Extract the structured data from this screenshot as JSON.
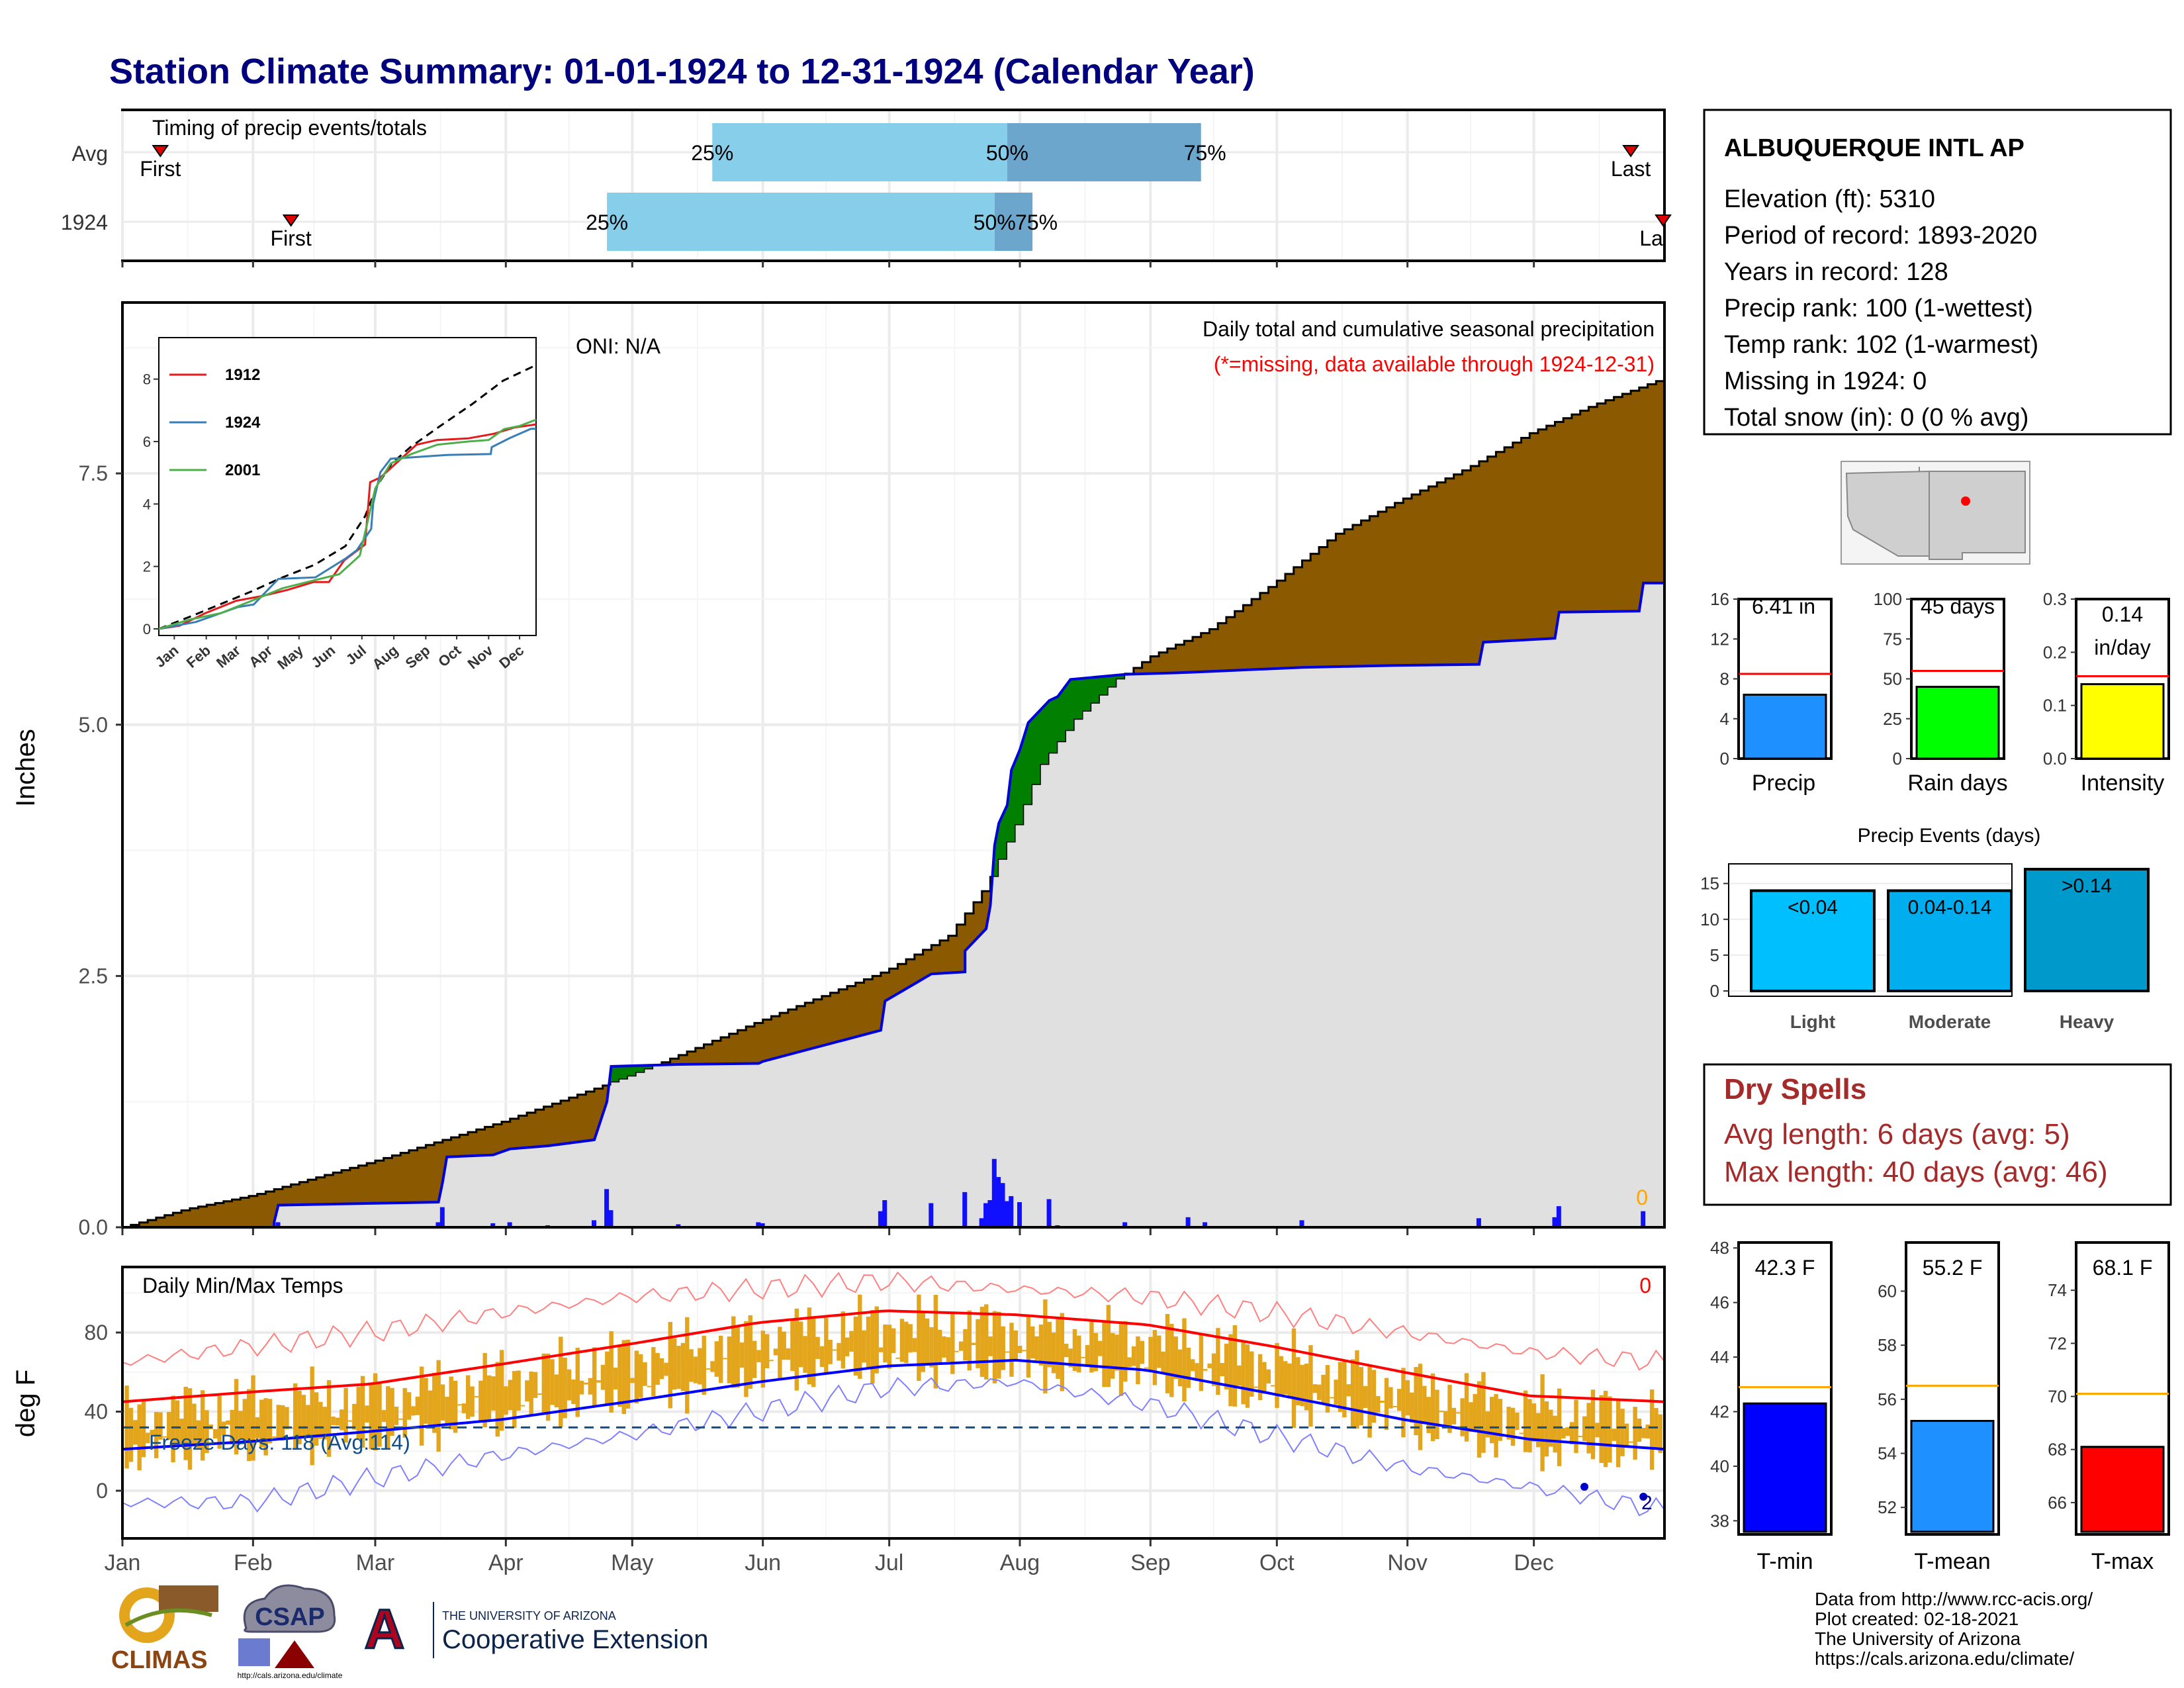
{
  "title": "Station Climate Summary: 01-01-1924 to 12-31-1924 (Calendar Year)",
  "months": [
    "Jan",
    "Feb",
    "Mar",
    "Apr",
    "May",
    "Jun",
    "Jul",
    "Aug",
    "Sep",
    "Oct",
    "Nov",
    "Dec"
  ],
  "colors": {
    "title": "#00007F",
    "avg_cum": "#8B5A00",
    "above_avg": "#007F00",
    "year_cum": "#0000DD",
    "year_fill": "#E0E0E0",
    "tmax_band": "#E3A51C",
    "tmin": "#0000FF",
    "tmean": "#1E90FF",
    "tmax": "#FF0000",
    "precip_bar": "#1E90FF",
    "raindays_bar": "#00FF00",
    "intensity_bar": "#FFFF00",
    "light": "#00BFFF",
    "moderate": "#00AEEF",
    "heavy": "#0099CC",
    "q_light": "#87CEEB",
    "q_dark": "#6CA6CD",
    "dry": "#A52A2A"
  },
  "timing": {
    "label": "Timing of precip events/totals",
    "rows": [
      {
        "name": "Avg",
        "first_doy": 9,
        "p25_doy": 140,
        "p50_doy": 210,
        "p75_doy": 256,
        "last_doy": 358,
        "first_label": "First",
        "last_label": "Last",
        "p25_label": "25%",
        "p50_label": "50%",
        "p75_label": "75%"
      },
      {
        "name": "1924",
        "first_doy": 40,
        "p25_doy": 115,
        "p50_doy": 207,
        "p75_doy": 216,
        "last_doy": 366,
        "first_label": "First",
        "last_label": "La",
        "p25_label": "25%",
        "p50_label": "50%",
        "p75_label": "75%"
      }
    ]
  },
  "precip": {
    "ylabel": "Inches",
    "yticks": [
      "0.0",
      "2.5",
      "5.0",
      "7.5"
    ],
    "ymax": 9.2,
    "oni": "ONI: N/A",
    "heading": "Daily total and cumulative seasonal precipitation",
    "note": "(*=missing, data available through 1924-12-31)",
    "missing_count": "0",
    "avg_cumulative": [
      [
        0,
        0
      ],
      [
        15,
        0.18
      ],
      [
        31,
        0.32
      ],
      [
        59,
        0.65
      ],
      [
        90,
        1.05
      ],
      [
        120,
        1.5
      ],
      [
        151,
        2.05
      ],
      [
        166,
        2.3
      ],
      [
        181,
        2.55
      ],
      [
        196,
        2.9
      ],
      [
        205,
        3.4
      ],
      [
        212,
        4.0
      ],
      [
        218,
        4.6
      ],
      [
        226,
        5.05
      ],
      [
        236,
        5.45
      ],
      [
        244,
        5.68
      ],
      [
        258,
        5.95
      ],
      [
        273,
        6.4
      ],
      [
        288,
        6.9
      ],
      [
        304,
        7.25
      ],
      [
        319,
        7.55
      ],
      [
        334,
        7.9
      ],
      [
        349,
        8.18
      ],
      [
        366,
        8.45
      ]
    ],
    "year_cumulative": [
      [
        0,
        0
      ],
      [
        36,
        0
      ],
      [
        36,
        0.05
      ],
      [
        37,
        0.22
      ],
      [
        75,
        0.25
      ],
      [
        76,
        0.45
      ],
      [
        77,
        0.7
      ],
      [
        88,
        0.72
      ],
      [
        92,
        0.78
      ],
      [
        101,
        0.81
      ],
      [
        112,
        0.87
      ],
      [
        115,
        1.25
      ],
      [
        116,
        1.6
      ],
      [
        132,
        1.62
      ],
      [
        151,
        1.63
      ],
      [
        152,
        1.65
      ],
      [
        180,
        1.96
      ],
      [
        181,
        2.25
      ],
      [
        192,
        2.52
      ],
      [
        200,
        2.54
      ],
      [
        200,
        2.75
      ],
      [
        205,
        2.97
      ],
      [
        206,
        3.2
      ],
      [
        207,
        3.8
      ],
      [
        208,
        4.02
      ],
      [
        210,
        4.2
      ],
      [
        211,
        4.55
      ],
      [
        213,
        4.75
      ],
      [
        215,
        5.02
      ],
      [
        220,
        5.24
      ],
      [
        222,
        5.28
      ],
      [
        225,
        5.45
      ],
      [
        238,
        5.5
      ],
      [
        253,
        5.52
      ],
      [
        280,
        5.57
      ],
      [
        302,
        5.59
      ],
      [
        322,
        5.6
      ],
      [
        323,
        5.82
      ],
      [
        340,
        5.86
      ],
      [
        341,
        6.12
      ],
      [
        360,
        6.13
      ],
      [
        361,
        6.41
      ],
      [
        366,
        6.41
      ]
    ],
    "daily_bars": [
      [
        37,
        0.05
      ],
      [
        75,
        0.05
      ],
      [
        76,
        0.2
      ],
      [
        88,
        0.04
      ],
      [
        92,
        0.05
      ],
      [
        101,
        0.02
      ],
      [
        112,
        0.07
      ],
      [
        115,
        0.38
      ],
      [
        116,
        0.17
      ],
      [
        132,
        0.03
      ],
      [
        151,
        0.05
      ],
      [
        152,
        0.04
      ],
      [
        180,
        0.16
      ],
      [
        181,
        0.27
      ],
      [
        192,
        0.24
      ],
      [
        200,
        0.35
      ],
      [
        204,
        0.09
      ],
      [
        205,
        0.24
      ],
      [
        206,
        0.27
      ],
      [
        207,
        0.68
      ],
      [
        208,
        0.5
      ],
      [
        209,
        0.44
      ],
      [
        210,
        0.26
      ],
      [
        211,
        0.31
      ],
      [
        213,
        0.25
      ],
      [
        220,
        0.28
      ],
      [
        222,
        0.02
      ],
      [
        238,
        0.05
      ],
      [
        253,
        0.1
      ],
      [
        257,
        0.05
      ],
      [
        280,
        0.07
      ],
      [
        322,
        0.09
      ],
      [
        340,
        0.1
      ],
      [
        341,
        0.21
      ],
      [
        361,
        0.16
      ]
    ]
  },
  "inset": {
    "yticks": [
      "0",
      "2",
      "4",
      "6",
      "8"
    ],
    "months": [
      "Jan",
      "Feb",
      "Mar",
      "Apr",
      "May",
      "Jun",
      "Jul",
      "Aug",
      "Sep",
      "Oct",
      "Nov",
      "Dec"
    ],
    "series": [
      {
        "name": "1912",
        "color": "#E41A1C",
        "points": [
          [
            0,
            0
          ],
          [
            20,
            0.1
          ],
          [
            45,
            0.5
          ],
          [
            75,
            0.9
          ],
          [
            100,
            1.05
          ],
          [
            125,
            1.25
          ],
          [
            150,
            1.5
          ],
          [
            165,
            1.5
          ],
          [
            180,
            2.2
          ],
          [
            200,
            2.7
          ],
          [
            205,
            4.7
          ],
          [
            215,
            4.85
          ],
          [
            230,
            5.3
          ],
          [
            250,
            5.9
          ],
          [
            270,
            6.05
          ],
          [
            300,
            6.1
          ],
          [
            325,
            6.25
          ],
          [
            345,
            6.45
          ],
          [
            366,
            6.55
          ]
        ]
      },
      {
        "name": "1924",
        "color": "#377EB8",
        "points": [
          [
            0,
            0
          ],
          [
            36,
            0.22
          ],
          [
            77,
            0.7
          ],
          [
            92,
            0.78
          ],
          [
            116,
            1.6
          ],
          [
            152,
            1.65
          ],
          [
            181,
            2.25
          ],
          [
            192,
            2.52
          ],
          [
            206,
            3.2
          ],
          [
            208,
            4.02
          ],
          [
            215,
            5.02
          ],
          [
            225,
            5.45
          ],
          [
            280,
            5.57
          ],
          [
            322,
            5.6
          ],
          [
            323,
            5.82
          ],
          [
            341,
            6.12
          ],
          [
            361,
            6.41
          ],
          [
            366,
            6.41
          ]
        ]
      },
      {
        "name": "2001",
        "color": "#4DAF4A",
        "points": [
          [
            0,
            0
          ],
          [
            30,
            0.3
          ],
          [
            60,
            0.5
          ],
          [
            90,
            0.9
          ],
          [
            120,
            1.3
          ],
          [
            150,
            1.55
          ],
          [
            175,
            1.75
          ],
          [
            195,
            2.35
          ],
          [
            210,
            4.5
          ],
          [
            225,
            5.3
          ],
          [
            245,
            5.6
          ],
          [
            270,
            5.9
          ],
          [
            300,
            6.0
          ],
          [
            320,
            6.05
          ],
          [
            335,
            6.4
          ],
          [
            350,
            6.5
          ],
          [
            366,
            6.7
          ]
        ]
      }
    ],
    "avg_line": [
      [
        0,
        0
      ],
      [
        31,
        0.4
      ],
      [
        59,
        0.78
      ],
      [
        90,
        1.2
      ],
      [
        120,
        1.65
      ],
      [
        151,
        2.05
      ],
      [
        181,
        2.65
      ],
      [
        200,
        3.6
      ],
      [
        212,
        4.6
      ],
      [
        226,
        5.3
      ],
      [
        244,
        5.82
      ],
      [
        273,
        6.5
      ],
      [
        304,
        7.2
      ],
      [
        334,
        7.95
      ],
      [
        366,
        8.45
      ]
    ]
  },
  "temps": {
    "ylabel": "deg F",
    "label": "Daily Min/Max Temps",
    "yticks": [
      "0",
      "40",
      "80"
    ],
    "freeze_label": "Freeze Days: 118 (Avg:114)",
    "freeze_line_f": 32,
    "missing_count": "0",
    "cold_mark_label": "2",
    "normal_max": [
      [
        0,
        45
      ],
      [
        31,
        50
      ],
      [
        59,
        54
      ],
      [
        90,
        64
      ],
      [
        120,
        74
      ],
      [
        151,
        85
      ],
      [
        181,
        91
      ],
      [
        212,
        89
      ],
      [
        243,
        84
      ],
      [
        273,
        73
      ],
      [
        304,
        60
      ],
      [
        334,
        48
      ],
      [
        366,
        45
      ]
    ],
    "normal_min": [
      [
        0,
        21
      ],
      [
        31,
        25
      ],
      [
        59,
        30
      ],
      [
        90,
        36
      ],
      [
        120,
        45
      ],
      [
        151,
        55
      ],
      [
        181,
        63
      ],
      [
        212,
        66
      ],
      [
        243,
        61
      ],
      [
        273,
        49
      ],
      [
        304,
        36
      ],
      [
        334,
        26
      ],
      [
        366,
        21
      ]
    ],
    "record_max": [
      [
        0,
        65
      ],
      [
        31,
        73
      ],
      [
        59,
        80
      ],
      [
        90,
        90
      ],
      [
        120,
        98
      ],
      [
        151,
        102
      ],
      [
        181,
        106
      ],
      [
        212,
        102
      ],
      [
        243,
        98
      ],
      [
        273,
        90
      ],
      [
        304,
        80
      ],
      [
        334,
        70
      ],
      [
        366,
        65
      ]
    ],
    "record_min": [
      [
        0,
        -6
      ],
      [
        31,
        -6
      ],
      [
        59,
        6
      ],
      [
        90,
        18
      ],
      [
        120,
        28
      ],
      [
        151,
        40
      ],
      [
        181,
        52
      ],
      [
        212,
        55
      ],
      [
        243,
        44
      ],
      [
        273,
        28
      ],
      [
        304,
        12
      ],
      [
        334,
        2
      ],
      [
        366,
        -10
      ]
    ]
  },
  "station": {
    "name": "ALBUQUERQUE INTL AP",
    "lines": [
      "Elevation (ft): 5310",
      "Period of record: 1893-2020",
      "Years in record: 128",
      "Precip rank: 100 (1-wettest)",
      "Temp rank: 102 (1-warmest)",
      "Missing in 1924: 0",
      "Total snow (in): 0 (0 % avg)"
    ]
  },
  "mini_precip": {
    "ticks": [
      "0",
      "4",
      "8",
      "12",
      "16"
    ],
    "max": 16,
    "value": 6.41,
    "avg": 8.5,
    "label": "6.41 in",
    "xlabel": "Precip"
  },
  "mini_raindays": {
    "ticks": [
      "0",
      "25",
      "50",
      "75",
      "100"
    ],
    "max": 100,
    "value": 45,
    "avg": 55,
    "label": "45 days",
    "xlabel": "Rain days"
  },
  "mini_intensity": {
    "ticks": [
      "0.0",
      "0.1",
      "0.2",
      "0.3"
    ],
    "max": 0.3,
    "value": 0.14,
    "avg": 0.155,
    "label_1": "0.14",
    "label_2": "in/day",
    "xlabel": "Intensity"
  },
  "events": {
    "title": "Precip Events (days)",
    "ticks": [
      "0",
      "5",
      "10",
      "15"
    ],
    "max": 17,
    "bars": [
      {
        "label": "<0.04",
        "category": "Light",
        "value": 14
      },
      {
        "label": "0.04-0.14",
        "category": "Moderate",
        "value": 14
      },
      {
        "label": ">0.14",
        "category": "Heavy",
        "value": 17
      }
    ]
  },
  "dry": {
    "title": "Dry Spells",
    "line1": "Avg length: 6 days (avg: 5)",
    "line2": "Max length: 40 days (avg: 46)"
  },
  "tmin_box": {
    "ticks": [
      "38",
      "40",
      "42",
      "44",
      "46",
      "48"
    ],
    "min": 37.5,
    "max": 48.2,
    "value": 42.3,
    "avg": 42.9,
    "label": "42.3 F",
    "xlabel": "T-min"
  },
  "tmean_box": {
    "ticks": [
      "52",
      "54",
      "56",
      "58",
      "60"
    ],
    "min": 51.0,
    "max": 61.8,
    "value": 55.2,
    "avg": 56.5,
    "label": "55.2 F",
    "xlabel": "T-mean"
  },
  "tmax_box": {
    "ticks": [
      "66",
      "68",
      "70",
      "72",
      "74"
    ],
    "min": 64.8,
    "max": 75.8,
    "value": 68.1,
    "avg": 70.1,
    "label": "68.1 F",
    "xlabel": "T-max"
  },
  "credits": {
    "line1": "Data from http://www.rcc-acis.org/",
    "line2": "Plot created: 02-18-2021",
    "line3": "The University of Arizona",
    "line4": "https://cals.arizona.edu/climate/"
  },
  "logos": {
    "climas": "CLIMAS",
    "csap": "CSAP",
    "csap_url": "http://cals.arizona.edu/climate",
    "ua_top": "THE UNIVERSITY OF ARIZONA",
    "ua_bottom": "Cooperative Extension",
    "ua_letter": "A"
  }
}
